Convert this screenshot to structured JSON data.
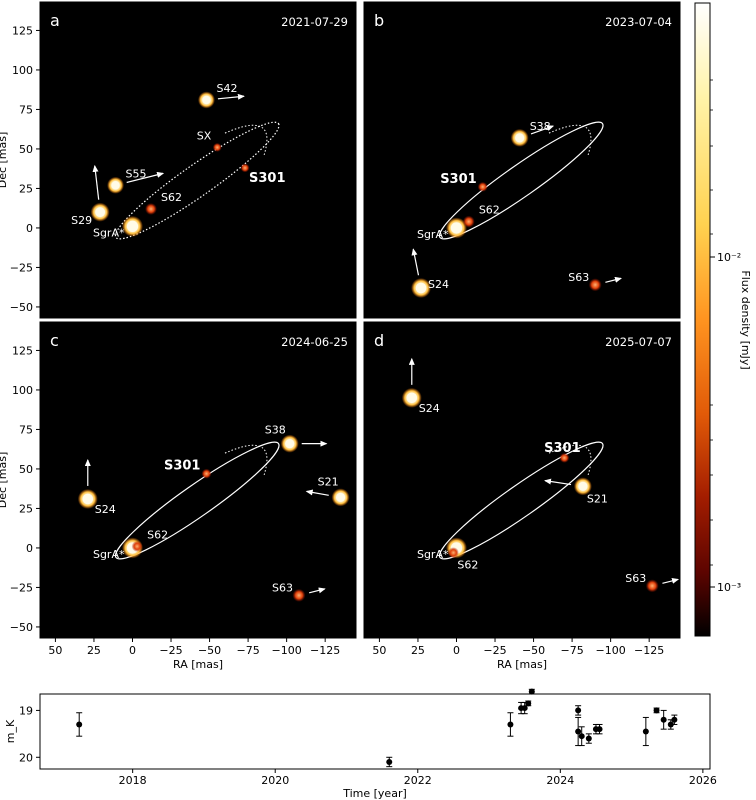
{
  "colorbar": {
    "label": "Flux density [mJy]",
    "ticks": [
      "10⁻²",
      "10⁻³"
    ],
    "colors": [
      "#ffffff",
      "#fff3a8",
      "#ffd250",
      "#ff9420",
      "#e15a08",
      "#a31d00",
      "#5c0400",
      "#000000"
    ]
  },
  "chart_data": [
    {
      "type": "scatter",
      "panel": "a",
      "date": "2021-07-29",
      "xlabel": "",
      "ylabel": "Dec [mas]",
      "xlim": [
        60,
        -145
      ],
      "ylim": [
        -57,
        143
      ],
      "xticks": [],
      "yticks": [
        "125",
        "100",
        "75",
        "50",
        "25",
        "0",
        "−25",
        "−50"
      ],
      "stars": [
        {
          "name": "SgrA*",
          "x": 0,
          "y": 1,
          "size": 7.5
        },
        {
          "name": "S42",
          "x": -48,
          "y": 81,
          "size": 5.5,
          "arrow": [
            -20,
            2
          ]
        },
        {
          "name": "SX",
          "x": -55,
          "y": 51,
          "size": 2.5
        },
        {
          "name": "S301",
          "x": -73,
          "y": 38,
          "size": 2.5,
          "bold": true
        },
        {
          "name": "S55",
          "x": 11,
          "y": 27,
          "size": 5.5,
          "arrow": [
            -28,
            7
          ]
        },
        {
          "name": "S29",
          "x": 21,
          "y": 10,
          "size": 6.5,
          "arrow": [
            3,
            26
          ]
        },
        {
          "name": "S62",
          "x": -12,
          "y": 12,
          "size": 4
        }
      ]
    },
    {
      "type": "scatter",
      "panel": "b",
      "date": "2023-07-04",
      "xlabel": "",
      "ylabel": "",
      "xlim": [
        60,
        -145
      ],
      "ylim": [
        -57,
        143
      ],
      "xticks": [],
      "yticks": [],
      "stars": [
        {
          "name": "SgrA*",
          "x": 0,
          "y": 0,
          "size": 7.5
        },
        {
          "name": "S38",
          "x": -41,
          "y": 57,
          "size": 6,
          "arrow": [
            -17,
            6
          ]
        },
        {
          "name": "S301",
          "x": -17,
          "y": 26,
          "size": 3,
          "bold": true
        },
        {
          "name": "S62",
          "x": -8,
          "y": 4,
          "size": 4
        },
        {
          "name": "S24",
          "x": 23,
          "y": -38,
          "size": 7,
          "arrow": [
            4,
            20
          ]
        },
        {
          "name": "S63",
          "x": -90,
          "y": -36,
          "size": 4.5,
          "arrow": [
            -12,
            3
          ]
        }
      ]
    },
    {
      "type": "scatter",
      "panel": "c",
      "date": "2024-06-25",
      "xlabel": "RA [mas]",
      "ylabel": "Dec [mas]",
      "xlim": [
        60,
        -145
      ],
      "ylim": [
        -57,
        143
      ],
      "xticks": [
        "50",
        "25",
        "0",
        "−25",
        "−50",
        "−75",
        "−100",
        "−125"
      ],
      "yticks": [
        "125",
        "100",
        "75",
        "50",
        "25",
        "0",
        "−25",
        "−50"
      ],
      "stars": [
        {
          "name": "SgrA*",
          "x": 0,
          "y": 0,
          "size": 7.5
        },
        {
          "name": "S62",
          "x": -3,
          "y": 1,
          "size": 3.5
        },
        {
          "name": "S301",
          "x": -48,
          "y": 47,
          "size": 3,
          "bold": true
        },
        {
          "name": "S38",
          "x": -102,
          "y": 66,
          "size": 6,
          "arrow": [
            -19,
            0
          ]
        },
        {
          "name": "S21",
          "x": -135,
          "y": 32,
          "size": 6,
          "arrow": [
            17,
            3
          ]
        },
        {
          "name": "S24",
          "x": 29,
          "y": 31,
          "size": 7,
          "arrow": [
            0,
            20
          ]
        },
        {
          "name": "S63",
          "x": -108,
          "y": -30,
          "size": 4.5,
          "arrow": [
            -12,
            3
          ]
        }
      ]
    },
    {
      "type": "scatter",
      "panel": "d",
      "date": "2025-07-07",
      "xlabel": "RA [mas]",
      "ylabel": "",
      "xlim": [
        60,
        -145
      ],
      "ylim": [
        -57,
        143
      ],
      "xticks": [
        "50",
        "25",
        "0",
        "−25",
        "−50",
        "−75",
        "−100",
        "−125"
      ],
      "yticks": [],
      "stars": [
        {
          "name": "SgrA*",
          "x": 0,
          "y": 0,
          "size": 7.5
        },
        {
          "name": "S24",
          "x": 29,
          "y": 95,
          "size": 7,
          "arrow": [
            0,
            20
          ]
        },
        {
          "name": "S301",
          "x": -70,
          "y": 57,
          "size": 3,
          "bold": true
        },
        {
          "name": "S21",
          "x": -82,
          "y": 39,
          "size": 6,
          "arrow": [
            20,
            3
          ]
        },
        {
          "name": "S62",
          "x": 2,
          "y": -3,
          "size": 3.5
        },
        {
          "name": "S63",
          "x": -127,
          "y": -24,
          "size": 4.5,
          "arrow": [
            -12,
            3
          ]
        }
      ]
    },
    {
      "type": "scatter",
      "panel": "light curve",
      "title": "",
      "xlabel": "Time [year]",
      "ylabel": "m_K",
      "xlim": [
        2016.7,
        2026.1
      ],
      "ylim": [
        20.25,
        18.65
      ],
      "xticks": [
        "2018",
        "2020",
        "2022",
        "2024",
        "2026"
      ],
      "yticks": [
        "19",
        "20"
      ],
      "points": [
        {
          "x": 2017.25,
          "y": 19.3,
          "err": 0.25
        },
        {
          "x": 2021.6,
          "y": 20.1,
          "err": 0.1
        },
        {
          "x": 2023.3,
          "y": 19.3,
          "err": 0.25
        },
        {
          "x": 2023.45,
          "y": 18.95,
          "err": 0.12
        },
        {
          "x": 2023.5,
          "y": 18.95,
          "err": 0.12
        },
        {
          "x": 2023.55,
          "y": 18.85,
          "err": 0.05
        },
        {
          "x": 2023.6,
          "y": 18.6,
          "err": 0.05
        },
        {
          "x": 2024.25,
          "y": 19.0,
          "err": 0.1
        },
        {
          "x": 2024.25,
          "y": 19.45,
          "err": 0.3
        },
        {
          "x": 2024.3,
          "y": 19.55,
          "err": 0.2
        },
        {
          "x": 2024.4,
          "y": 19.6,
          "err": 0.1
        },
        {
          "x": 2024.5,
          "y": 19.4,
          "err": 0.1
        },
        {
          "x": 2024.55,
          "y": 19.4,
          "err": 0.1
        },
        {
          "x": 2025.2,
          "y": 19.45,
          "err": 0.3
        },
        {
          "x": 2025.35,
          "y": 19.0,
          "err": 0.05
        },
        {
          "x": 2025.45,
          "y": 19.2,
          "err": 0.2
        },
        {
          "x": 2025.55,
          "y": 19.3,
          "err": 0.1
        },
        {
          "x": 2025.6,
          "y": 19.2,
          "err": 0.1
        }
      ]
    }
  ]
}
